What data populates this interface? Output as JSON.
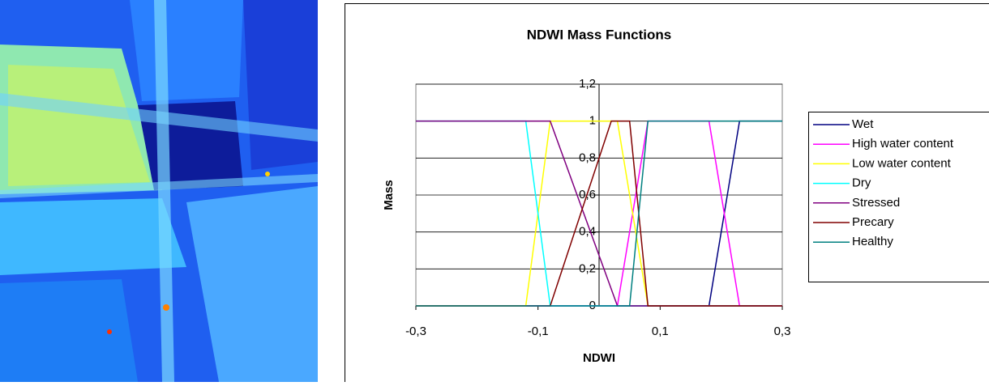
{
  "chart_data": {
    "type": "line",
    "title": "NDWI Mass Functions",
    "x_label": "NDWI",
    "y_label": "Mass",
    "xlim": [
      -0.3,
      0.3
    ],
    "ylim": [
      0,
      1.2
    ],
    "xticks": [
      {
        "value": -0.3,
        "label": "-0,3"
      },
      {
        "value": -0.1,
        "label": "-0,1"
      },
      {
        "value": 0.1,
        "label": "0,1"
      },
      {
        "value": 0.3,
        "label": "0,3"
      }
    ],
    "yticks": [
      0,
      {
        "value": 0.2,
        "label": "0,2"
      },
      {
        "value": 0.4,
        "label": "0,4"
      },
      {
        "value": 0.6,
        "label": "0,6"
      },
      {
        "value": 0.8,
        "label": "0,8"
      },
      1,
      {
        "value": 1.2,
        "label": "1,2"
      }
    ],
    "grid": true,
    "legend": "right",
    "series": [
      {
        "name": "Wet",
        "color": "#000080",
        "x": [
          -0.3,
          0.18,
          0.23,
          0.3
        ],
        "values": [
          0,
          0,
          1,
          1
        ]
      },
      {
        "name": "High water content",
        "color": "#ff00ff",
        "x": [
          -0.3,
          0.03,
          0.08,
          0.18,
          0.23,
          0.3
        ],
        "values": [
          0,
          0,
          1,
          1,
          0,
          0
        ]
      },
      {
        "name": "Low water content",
        "color": "#ffff00",
        "x": [
          -0.3,
          -0.12,
          -0.08,
          0.03,
          0.08,
          0.3
        ],
        "values": [
          0,
          0,
          1,
          1,
          0,
          0
        ]
      },
      {
        "name": "Dry",
        "color": "#00ffff",
        "x": [
          -0.3,
          -0.12,
          -0.08,
          0.3
        ],
        "values": [
          1,
          1,
          0,
          0
        ]
      },
      {
        "name": "Stressed",
        "color": "#800080",
        "x": [
          -0.3,
          -0.08,
          0.03,
          0.3
        ],
        "values": [
          1,
          1,
          0,
          0
        ]
      },
      {
        "name": "Precary",
        "color": "#800000",
        "x": [
          -0.3,
          -0.08,
          0.02,
          0.05,
          0.08,
          0.3
        ],
        "values": [
          0,
          0,
          1,
          1,
          0,
          0
        ]
      },
      {
        "name": "Healthy",
        "color": "#008080",
        "x": [
          -0.3,
          0.05,
          0.08,
          0.3
        ],
        "values": [
          0,
          0,
          1,
          1
        ]
      }
    ]
  }
}
